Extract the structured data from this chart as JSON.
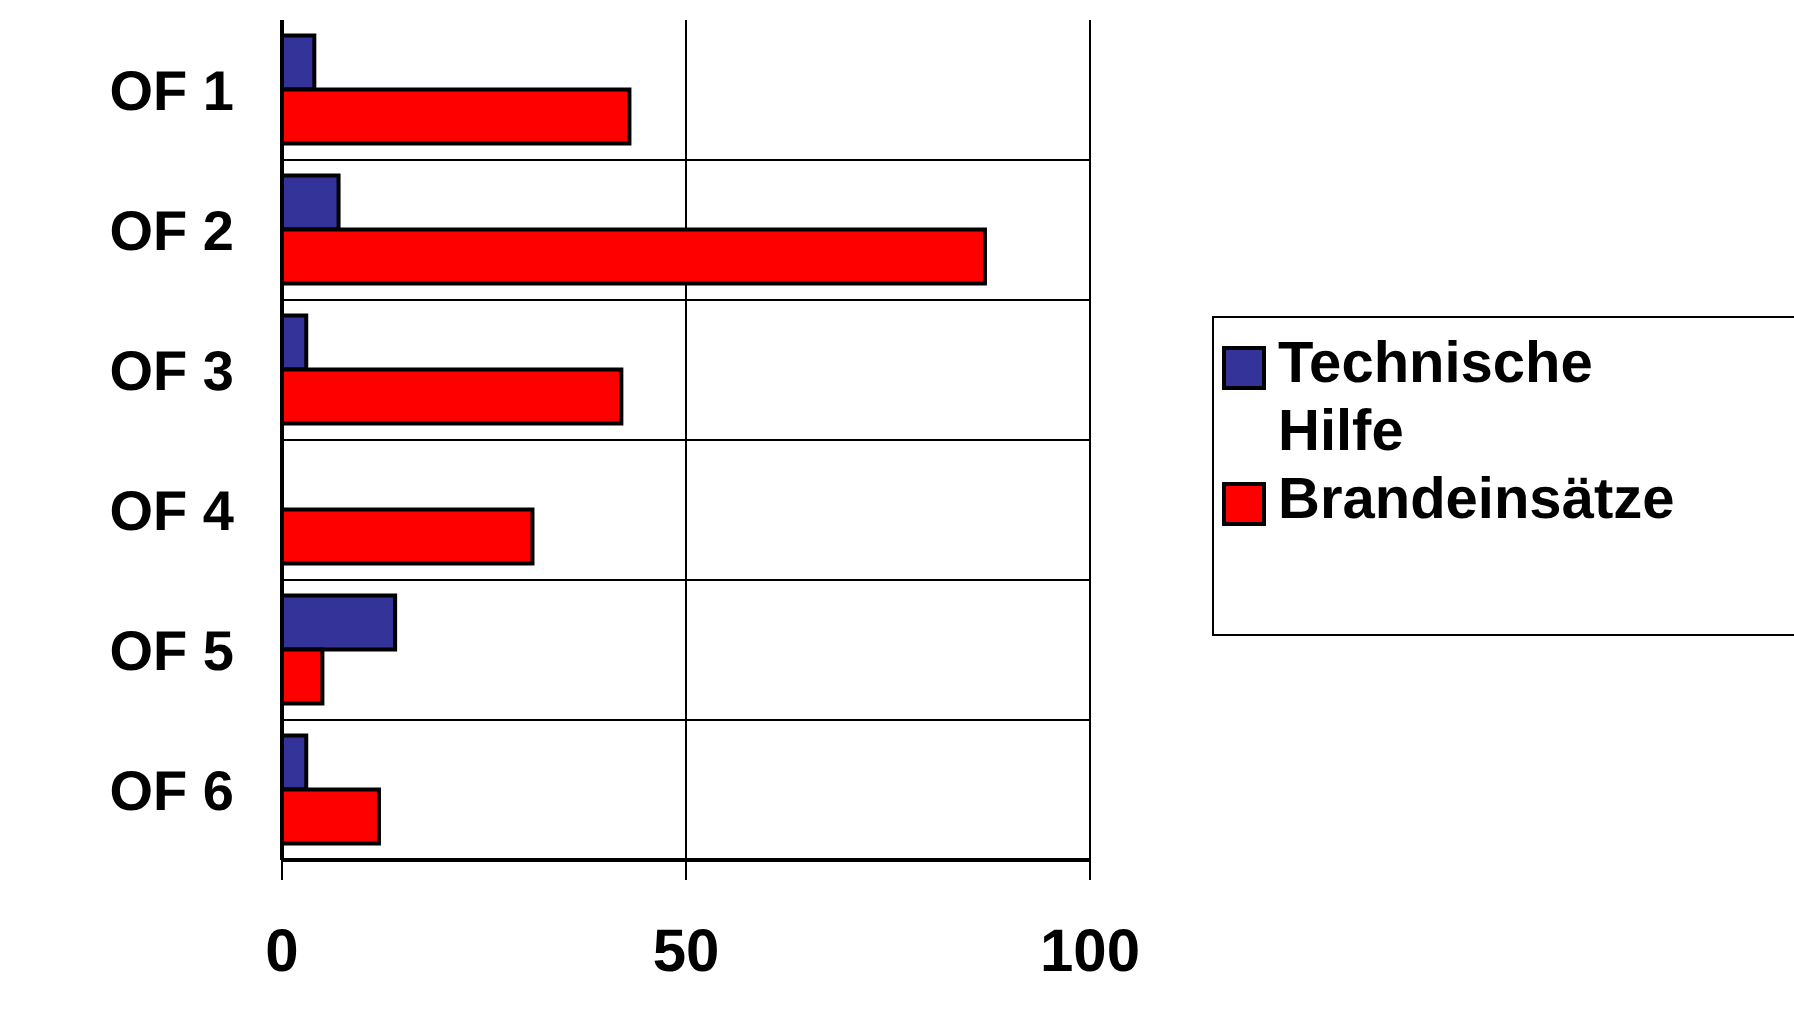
{
  "chart_data": {
    "type": "bar",
    "orientation": "horizontal",
    "categories": [
      "OF 1",
      "OF 2",
      "OF 3",
      "OF 4",
      "OF 5",
      "OF 6"
    ],
    "series": [
      {
        "name": "Technische Hilfe",
        "color": "#333399",
        "values": [
          4,
          7,
          3,
          0,
          14,
          3
        ]
      },
      {
        "name": "Brandeinsätze",
        "color": "#ff0000",
        "values": [
          43,
          87,
          42,
          31,
          5,
          12
        ]
      }
    ],
    "xlim": [
      0,
      100
    ],
    "xticks": [
      0,
      50,
      100
    ],
    "grid": true,
    "legend": "right"
  }
}
